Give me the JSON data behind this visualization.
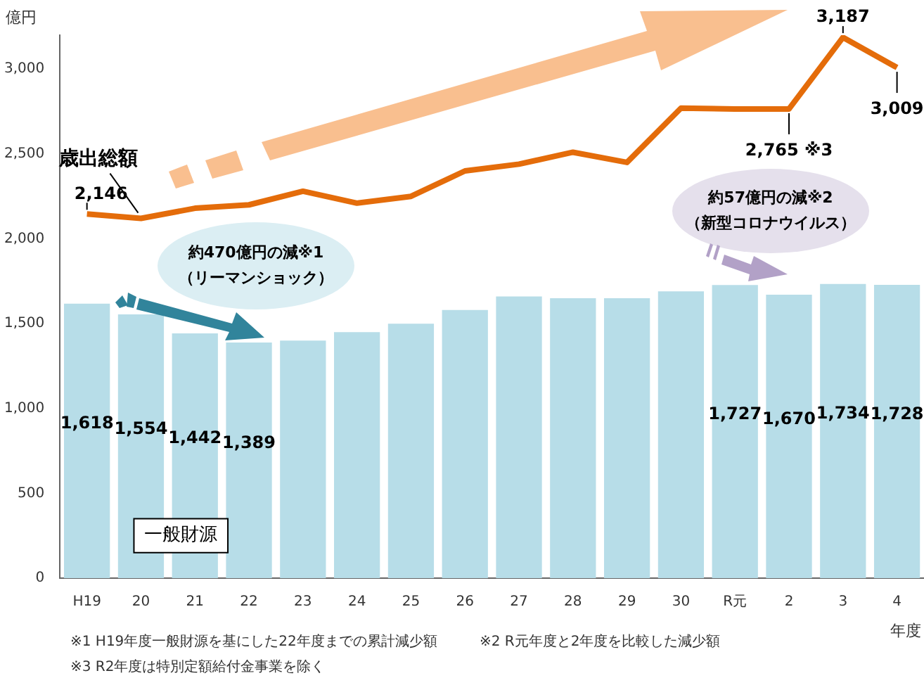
{
  "chart_data": {
    "type": "bar",
    "ylabel": "億円",
    "xlabel": "年度",
    "categories": [
      "H19",
      "20",
      "21",
      "22",
      "23",
      "24",
      "25",
      "26",
      "27",
      "28",
      "29",
      "30",
      "R元",
      "2",
      "3",
      "4"
    ],
    "series": [
      {
        "name": "一般財源",
        "color": "#b7dde8",
        "values": [
          1618,
          1554,
          1442,
          1389,
          1400,
          1450,
          1500,
          1580,
          1660,
          1650,
          1650,
          1690,
          1727,
          1670,
          1734,
          1728
        ],
        "value_labels": [
          "1,618",
          "1,554",
          "1,442",
          "1,389",
          null,
          null,
          null,
          null,
          null,
          null,
          null,
          null,
          "1,727",
          "1,670",
          "1,734",
          "1,728"
        ]
      },
      {
        "name": "歳出総額",
        "type": "line",
        "color": "#e46c0a",
        "values": [
          2146,
          2120,
          2180,
          2200,
          2280,
          2210,
          2250,
          2400,
          2440,
          2510,
          2450,
          2770,
          2765,
          2765,
          3187,
          3009
        ],
        "value_labels": [
          "2,146",
          null,
          null,
          null,
          null,
          null,
          null,
          null,
          null,
          null,
          null,
          null,
          null,
          "2,765 ※3",
          "3,187",
          "3,009"
        ]
      }
    ],
    "ylim": [
      0,
      3200
    ],
    "yticks": [
      0,
      500,
      {
        "value": 1000,
        "label": "1,000"
      },
      {
        "value": 1500,
        "label": "1,500"
      },
      {
        "value": 2000,
        "label": "2,000"
      },
      {
        "value": 2500,
        "label": "2,500"
      },
      {
        "value": 3000,
        "label": "3,000"
      }
    ],
    "grid": false,
    "legend": false,
    "marker": "none",
    "annotations": [
      "約470億円の減※1\n（リーマンショック）",
      "約57億円の減※2\n（新型コロナウイルス）",
      "※1 H19年度一般財源を基にした22年度までの累計減少額",
      "※2 R元年度と2年度を比較した減少額",
      "※3 R2年度は特別定額給付金事業を除く"
    ]
  }
}
